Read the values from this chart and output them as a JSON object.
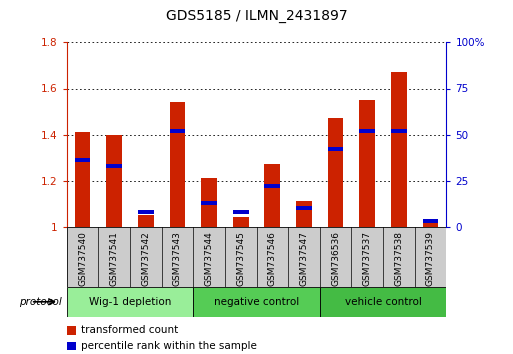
{
  "title": "GDS5185 / ILMN_2431897",
  "samples": [
    "GSM737540",
    "GSM737541",
    "GSM737542",
    "GSM737543",
    "GSM737544",
    "GSM737545",
    "GSM737546",
    "GSM737547",
    "GSM736536",
    "GSM737537",
    "GSM737538",
    "GSM737539"
  ],
  "red_values": [
    1.41,
    1.4,
    1.05,
    1.54,
    1.21,
    1.04,
    1.27,
    1.11,
    1.47,
    1.55,
    1.67,
    1.02
  ],
  "blue_percentiles": [
    0.36,
    0.33,
    0.08,
    0.52,
    0.13,
    0.08,
    0.22,
    0.1,
    0.42,
    0.52,
    0.52,
    0.03
  ],
  "groups": [
    {
      "label": "Wig-1 depletion",
      "start": 0,
      "end": 4,
      "color": "#99ee99"
    },
    {
      "label": "negative control",
      "start": 4,
      "end": 8,
      "color": "#55cc55"
    },
    {
      "label": "vehicle control",
      "start": 8,
      "end": 12,
      "color": "#44bb44"
    }
  ],
  "ylim_left": [
    1.0,
    1.8
  ],
  "yticks_left": [
    1.0,
    1.2,
    1.4,
    1.6,
    1.8
  ],
  "yticklabels_left": [
    "1",
    "1.2",
    "1.4",
    "1.6",
    "1.8"
  ],
  "ylim_right": [
    0.0,
    1.0
  ],
  "yticks_right": [
    0.0,
    0.25,
    0.5,
    0.75,
    1.0
  ],
  "yticklabels_right": [
    "0",
    "25",
    "50",
    "75",
    "100%"
  ],
  "left_tick_color": "#cc2200",
  "right_tick_color": "#0000cc",
  "bar_color": "#cc2200",
  "blue_color": "#0000cc",
  "bg_color": "#ffffff",
  "legend_items": [
    "transformed count",
    "percentile rank within the sample"
  ]
}
